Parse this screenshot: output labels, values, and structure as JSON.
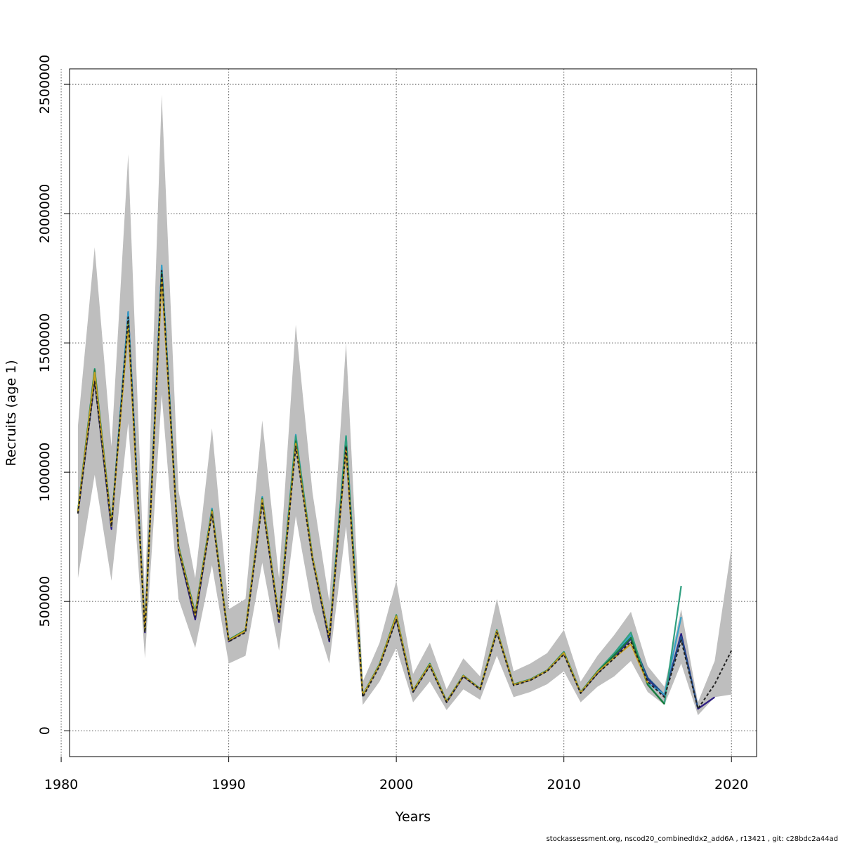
{
  "chart_data": {
    "type": "line",
    "title": "",
    "xlabel": "Years",
    "ylabel": "Recruits (age 1)",
    "xlim": [
      1980.5,
      2021.5
    ],
    "ylim": [
      -100000,
      2560000
    ],
    "x_ticks": [
      1980,
      1990,
      2000,
      2010,
      2020
    ],
    "y_ticks": [
      0,
      500000,
      1000000,
      1500000,
      2000000,
      2500000
    ],
    "grid": true,
    "footer": "stockassessment.org, nscod20_combinedIdx2_add6A , r13421 , git: c28bdc2a44ad",
    "colors": {
      "band": "#bebebe",
      "base": "#222222",
      "retro": [
        "#2c1a82",
        "#1f4e8c",
        "#36a0c8",
        "#30a080",
        "#1a7a3a",
        "#c8a020",
        "#8fcde8"
      ]
    },
    "confidence_band": {
      "x": [
        1981,
        1982,
        1983,
        1984,
        1985,
        1986,
        1987,
        1988,
        1989,
        1990,
        1991,
        1992,
        1993,
        1994,
        1995,
        1996,
        1997,
        1998,
        1999,
        2000,
        2001,
        2002,
        2003,
        2004,
        2005,
        2006,
        2007,
        2008,
        2009,
        2010,
        2011,
        2012,
        2013,
        2014,
        2015,
        2016,
        2017,
        2018,
        2019,
        2020
      ],
      "upper": [
        1180000,
        1870000,
        1100000,
        2230000,
        520000,
        2460000,
        930000,
        590000,
        1170000,
        470000,
        510000,
        1200000,
        590000,
        1570000,
        920000,
        500000,
        1500000,
        190000,
        340000,
        580000,
        220000,
        340000,
        160000,
        280000,
        210000,
        510000,
        230000,
        260000,
        300000,
        390000,
        190000,
        290000,
        370000,
        460000,
        250000,
        170000,
        470000,
        110000,
        270000,
        710000
      ],
      "lower": [
        590000,
        990000,
        580000,
        1190000,
        280000,
        1300000,
        510000,
        320000,
        640000,
        260000,
        290000,
        650000,
        310000,
        830000,
        470000,
        260000,
        790000,
        100000,
        190000,
        320000,
        110000,
        190000,
        80000,
        160000,
        120000,
        290000,
        130000,
        150000,
        180000,
        230000,
        110000,
        170000,
        210000,
        270000,
        150000,
        100000,
        260000,
        60000,
        130000,
        140000
      ]
    },
    "series": [
      {
        "x": [
          1981,
          1982,
          1983,
          1984,
          1985,
          1986,
          1987,
          1988,
          1989,
          1990,
          1991,
          1992,
          1993,
          1994,
          1995,
          1996,
          1997,
          1998,
          1999,
          2000,
          2001,
          2002,
          2003,
          2004,
          2005,
          2006,
          2007,
          2008,
          2009,
          2010,
          2011,
          2012,
          2013,
          2014,
          2015,
          2016,
          2017,
          2018,
          2019,
          2020
        ],
        "values": [
          840000,
          1350000,
          790000,
          1600000,
          380000,
          1780000,
          700000,
          440000,
          840000,
          345000,
          380000,
          880000,
          425000,
          1100000,
          660000,
          350000,
          1100000,
          130000,
          250000,
          430000,
          150000,
          250000,
          110000,
          210000,
          160000,
          380000,
          175000,
          195000,
          230000,
          295000,
          145000,
          220000,
          280000,
          345000,
          190000,
          130000,
          350000,
          85000,
          180000,
          310000
        ],
        "style": "dashed"
      },
      {
        "x": [
          1981,
          1982,
          1983,
          1984,
          1985,
          1986,
          1987,
          1988,
          1989,
          1990,
          1991,
          1992,
          1993,
          1994,
          1995,
          1996,
          1997,
          1998,
          1999,
          2000,
          2001,
          2002,
          2003,
          2004,
          2005,
          2006,
          2007,
          2008,
          2009,
          2010,
          2011,
          2012,
          2013,
          2014,
          2015,
          2016,
          2017,
          2018,
          2019
        ],
        "values": [
          840000,
          1360000,
          780000,
          1620000,
          380000,
          1790000,
          700000,
          430000,
          850000,
          345000,
          385000,
          890000,
          420000,
          1120000,
          665000,
          345000,
          1100000,
          135000,
          255000,
          435000,
          150000,
          255000,
          110000,
          210000,
          160000,
          385000,
          178000,
          196000,
          232000,
          300000,
          146000,
          222000,
          285000,
          355000,
          200000,
          135000,
          375000,
          85000,
          130000
        ]
      },
      {
        "x": [
          1981,
          1982,
          1983,
          1984,
          1985,
          1986,
          1987,
          1988,
          1989,
          1990,
          1991,
          1992,
          1993,
          1994,
          1995,
          1996,
          1997,
          1998,
          1999,
          2000,
          2001,
          2002,
          2003,
          2004,
          2005,
          2006,
          2007,
          2008,
          2009,
          2010,
          2011,
          2012,
          2013,
          2014,
          2015,
          2016,
          2017,
          2018
        ],
        "values": [
          845000,
          1380000,
          790000,
          1610000,
          385000,
          1790000,
          705000,
          445000,
          850000,
          350000,
          385000,
          895000,
          430000,
          1130000,
          665000,
          355000,
          1110000,
          135000,
          255000,
          440000,
          152000,
          255000,
          112000,
          212000,
          161000,
          385000,
          178000,
          197000,
          232000,
          302000,
          147000,
          225000,
          290000,
          360000,
          205000,
          138000,
          365000,
          88000
        ]
      },
      {
        "x": [
          1981,
          1982,
          1983,
          1984,
          1985,
          1986,
          1987,
          1988,
          1989,
          1990,
          1991,
          1992,
          1993,
          1994,
          1995,
          1996,
          1997,
          1998,
          1999,
          2000,
          2001,
          2002,
          2003,
          2004,
          2005,
          2006,
          2007,
          2008,
          2009,
          2010,
          2011,
          2012,
          2013,
          2014,
          2015,
          2016,
          2017
        ],
        "values": [
          850000,
          1390000,
          795000,
          1620000,
          385000,
          1800000,
          710000,
          450000,
          860000,
          350000,
          388000,
          905000,
          432000,
          1145000,
          670000,
          360000,
          1140000,
          137000,
          258000,
          445000,
          155000,
          258000,
          113000,
          213000,
          162000,
          388000,
          179000,
          198000,
          233000,
          305000,
          148000,
          228000,
          295000,
          370000,
          185000,
          140000,
          440000
        ]
      },
      {
        "x": [
          1981,
          1982,
          1983,
          1984,
          1985,
          1986,
          1987,
          1988,
          1989,
          1990,
          1991,
          1992,
          1993,
          1994,
          1995,
          1996,
          1997,
          1998,
          1999,
          2000,
          2001,
          2002,
          2003,
          2004,
          2005,
          2006,
          2007,
          2008,
          2009,
          2010,
          2011,
          2012,
          2013,
          2014,
          2015,
          2016,
          2017
        ],
        "values": [
          850000,
          1400000,
          800000,
          1580000,
          390000,
          1760000,
          715000,
          455000,
          855000,
          352000,
          390000,
          900000,
          435000,
          1140000,
          672000,
          362000,
          1140000,
          138000,
          258000,
          448000,
          156000,
          260000,
          114000,
          214000,
          163000,
          390000,
          180000,
          199000,
          234000,
          305000,
          149000,
          230000,
          300000,
          380000,
          180000,
          105000,
          560000
        ]
      },
      {
        "x": [
          1981,
          1982,
          1983,
          1984,
          1985,
          1986,
          1987,
          1988,
          1989,
          1990,
          1991,
          1992,
          1993,
          1994,
          1995,
          1996,
          1997,
          1998,
          1999,
          2000,
          2001,
          2002,
          2003,
          2004,
          2005,
          2006,
          2007,
          2008,
          2009,
          2010,
          2011,
          2012,
          2013,
          2014,
          2015,
          2016
        ],
        "values": [
          848000,
          1395000,
          798000,
          1575000,
          388000,
          1770000,
          712000,
          452000,
          852000,
          351000,
          389000,
          898000,
          433000,
          1120000,
          670000,
          360000,
          1100000,
          137000,
          256000,
          446000,
          155000,
          258000,
          113000,
          213000,
          162000,
          388000,
          179000,
          198000,
          233000,
          303000,
          148000,
          228000,
          292000,
          360000,
          178000,
          103000
        ]
      },
      {
        "x": [
          1981,
          1982,
          1983,
          1984,
          1985,
          1986,
          1987,
          1988,
          1989,
          1990,
          1991,
          1992,
          1993,
          1994,
          1995,
          1996,
          1997,
          1998,
          1999,
          2000,
          2001,
          2002,
          2003,
          2004,
          2005,
          2006,
          2007,
          2008,
          2009,
          2010,
          2011,
          2012,
          2013,
          2014,
          2015
        ],
        "values": [
          845000,
          1385000,
          792000,
          1570000,
          386000,
          1750000,
          708000,
          448000,
          848000,
          349000,
          387000,
          893000,
          430000,
          1110000,
          668000,
          358000,
          1090000,
          136000,
          255000,
          443000,
          154000,
          256000,
          112000,
          212000,
          161000,
          386000,
          178000,
          197000,
          232000,
          301000,
          147000,
          226000,
          282000,
          335000,
          185000
        ]
      }
    ]
  }
}
